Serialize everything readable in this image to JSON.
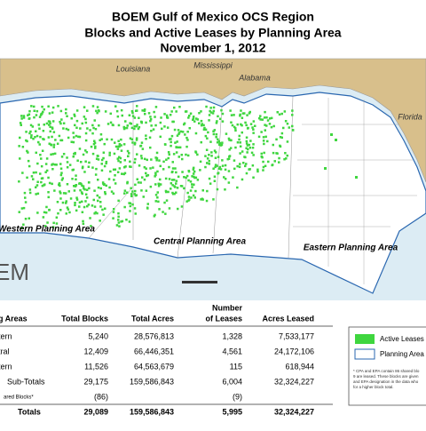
{
  "header": {
    "title": [
      "BOEM Gulf of Mexico OCS Region",
      "Blocks and Active Leases by Planning Area",
      "November 1, 2012"
    ]
  },
  "map": {
    "states": [
      "Louisiana",
      "Mississippi",
      "Alabama",
      "Florida"
    ],
    "areas": [
      "Western Planning Area",
      "Central Planning Area",
      "Eastern Planning Area"
    ],
    "logo": "EM"
  },
  "table": {
    "header_top": "Number",
    "headers": [
      "g Areas",
      "Total Blocks",
      "Total Acres",
      "of Leases",
      "Acres Leased"
    ],
    "rows": [
      [
        "tern",
        "5,240",
        "28,576,813",
        "1,328",
        "7,533,177"
      ],
      [
        "tral",
        "12,409",
        "66,446,351",
        "4,561",
        "24,172,106"
      ],
      [
        "tern",
        "11,526",
        "64,563,679",
        "115",
        "618,944"
      ],
      [
        "Sub-Totals",
        "29,175",
        "159,586,843",
        "6,004",
        "32,324,227"
      ],
      [
        "ared Blocks*",
        "(86)",
        "",
        "(9)",
        ""
      ],
      [
        "Totals",
        "29,089",
        "159,586,843",
        "5,995",
        "32,324,227"
      ]
    ]
  },
  "legend": {
    "items": [
      "Active Leases",
      "Planning Area B"
    ],
    "note": [
      "* CPA and EPA contain 86 shared blo",
      "9 are leased. These blocks are given",
      "and EPA designation in the data who",
      "for a higher block total."
    ]
  }
}
